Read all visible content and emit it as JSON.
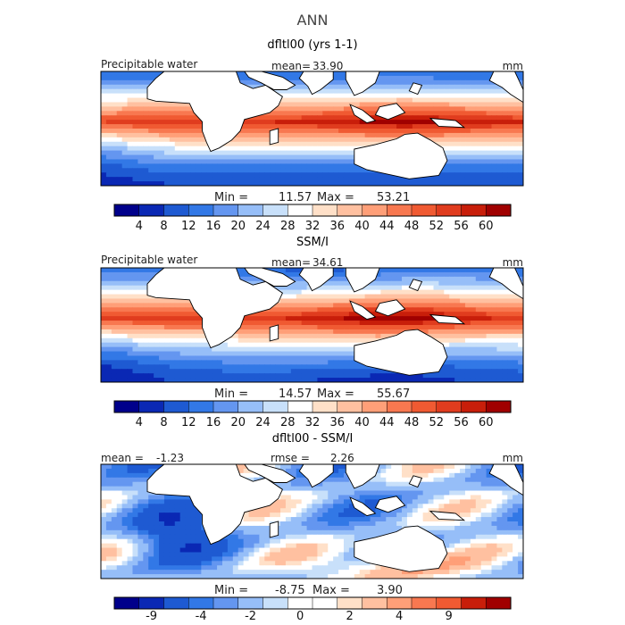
{
  "figure": {
    "title": "ANN"
  },
  "colors": {
    "abs_scale": [
      "#00008b",
      "#0a28b4",
      "#1e5ad2",
      "#3278e6",
      "#6496f0",
      "#96bef8",
      "#c8e0fa",
      "#ffffff",
      "#ffe0c8",
      "#ffc0a0",
      "#ff9f78",
      "#f87850",
      "#f05a32",
      "#e03c1e",
      "#c81e0a",
      "#a00000"
    ],
    "diff_scale": [
      "#00008b",
      "#0a28b4",
      "#1e5ad2",
      "#3278e6",
      "#6496f0",
      "#96bef8",
      "#c8e0fa",
      "#ffffff",
      "#ffffff",
      "#ffe0c8",
      "#ffc0a0",
      "#ff9f78",
      "#f87850",
      "#f05a32",
      "#c81e0a",
      "#a00000"
    ],
    "land": "#ffffff",
    "outline": "#000000"
  },
  "chart_data": [
    {
      "type": "heatmap",
      "title": "dfltl00 (yrs 1-1)",
      "left_label": "Precipitable water",
      "stat1_label": "mean=",
      "stat1_value": "33.90",
      "units": "mm",
      "min_label": "Min =",
      "min_value": "11.57",
      "max_label": "Max =",
      "max_value": "53.21",
      "colorbar_ticks": [
        "4",
        "8",
        "12",
        "16",
        "20",
        "24",
        "28",
        "32",
        "36",
        "40",
        "44",
        "48",
        "52",
        "56",
        "60"
      ],
      "field": "model"
    },
    {
      "type": "heatmap",
      "title": "SSM/I",
      "left_label": "Precipitable water",
      "stat1_label": "mean=",
      "stat1_value": "34.61",
      "units": "mm",
      "min_label": "Min =",
      "min_value": "14.57",
      "max_label": "Max =",
      "max_value": "55.67",
      "colorbar_ticks": [
        "4",
        "8",
        "12",
        "16",
        "20",
        "24",
        "28",
        "32",
        "36",
        "40",
        "44",
        "48",
        "52",
        "56",
        "60"
      ],
      "field": "obs"
    },
    {
      "type": "heatmap",
      "title": "dfltl00 - SSM/I",
      "left_label": "mean =",
      "left_value": "-1.23",
      "stat1_label": "rmse =",
      "stat1_value": "2.26",
      "units": "mm",
      "min_label": "Min =",
      "min_value": "-8.75",
      "max_label": "Max =",
      "max_value": "3.90",
      "colorbar_ticks": [
        "-9",
        "-4",
        "-2",
        "0",
        "2",
        "4",
        "9"
      ],
      "field": "diff"
    }
  ]
}
